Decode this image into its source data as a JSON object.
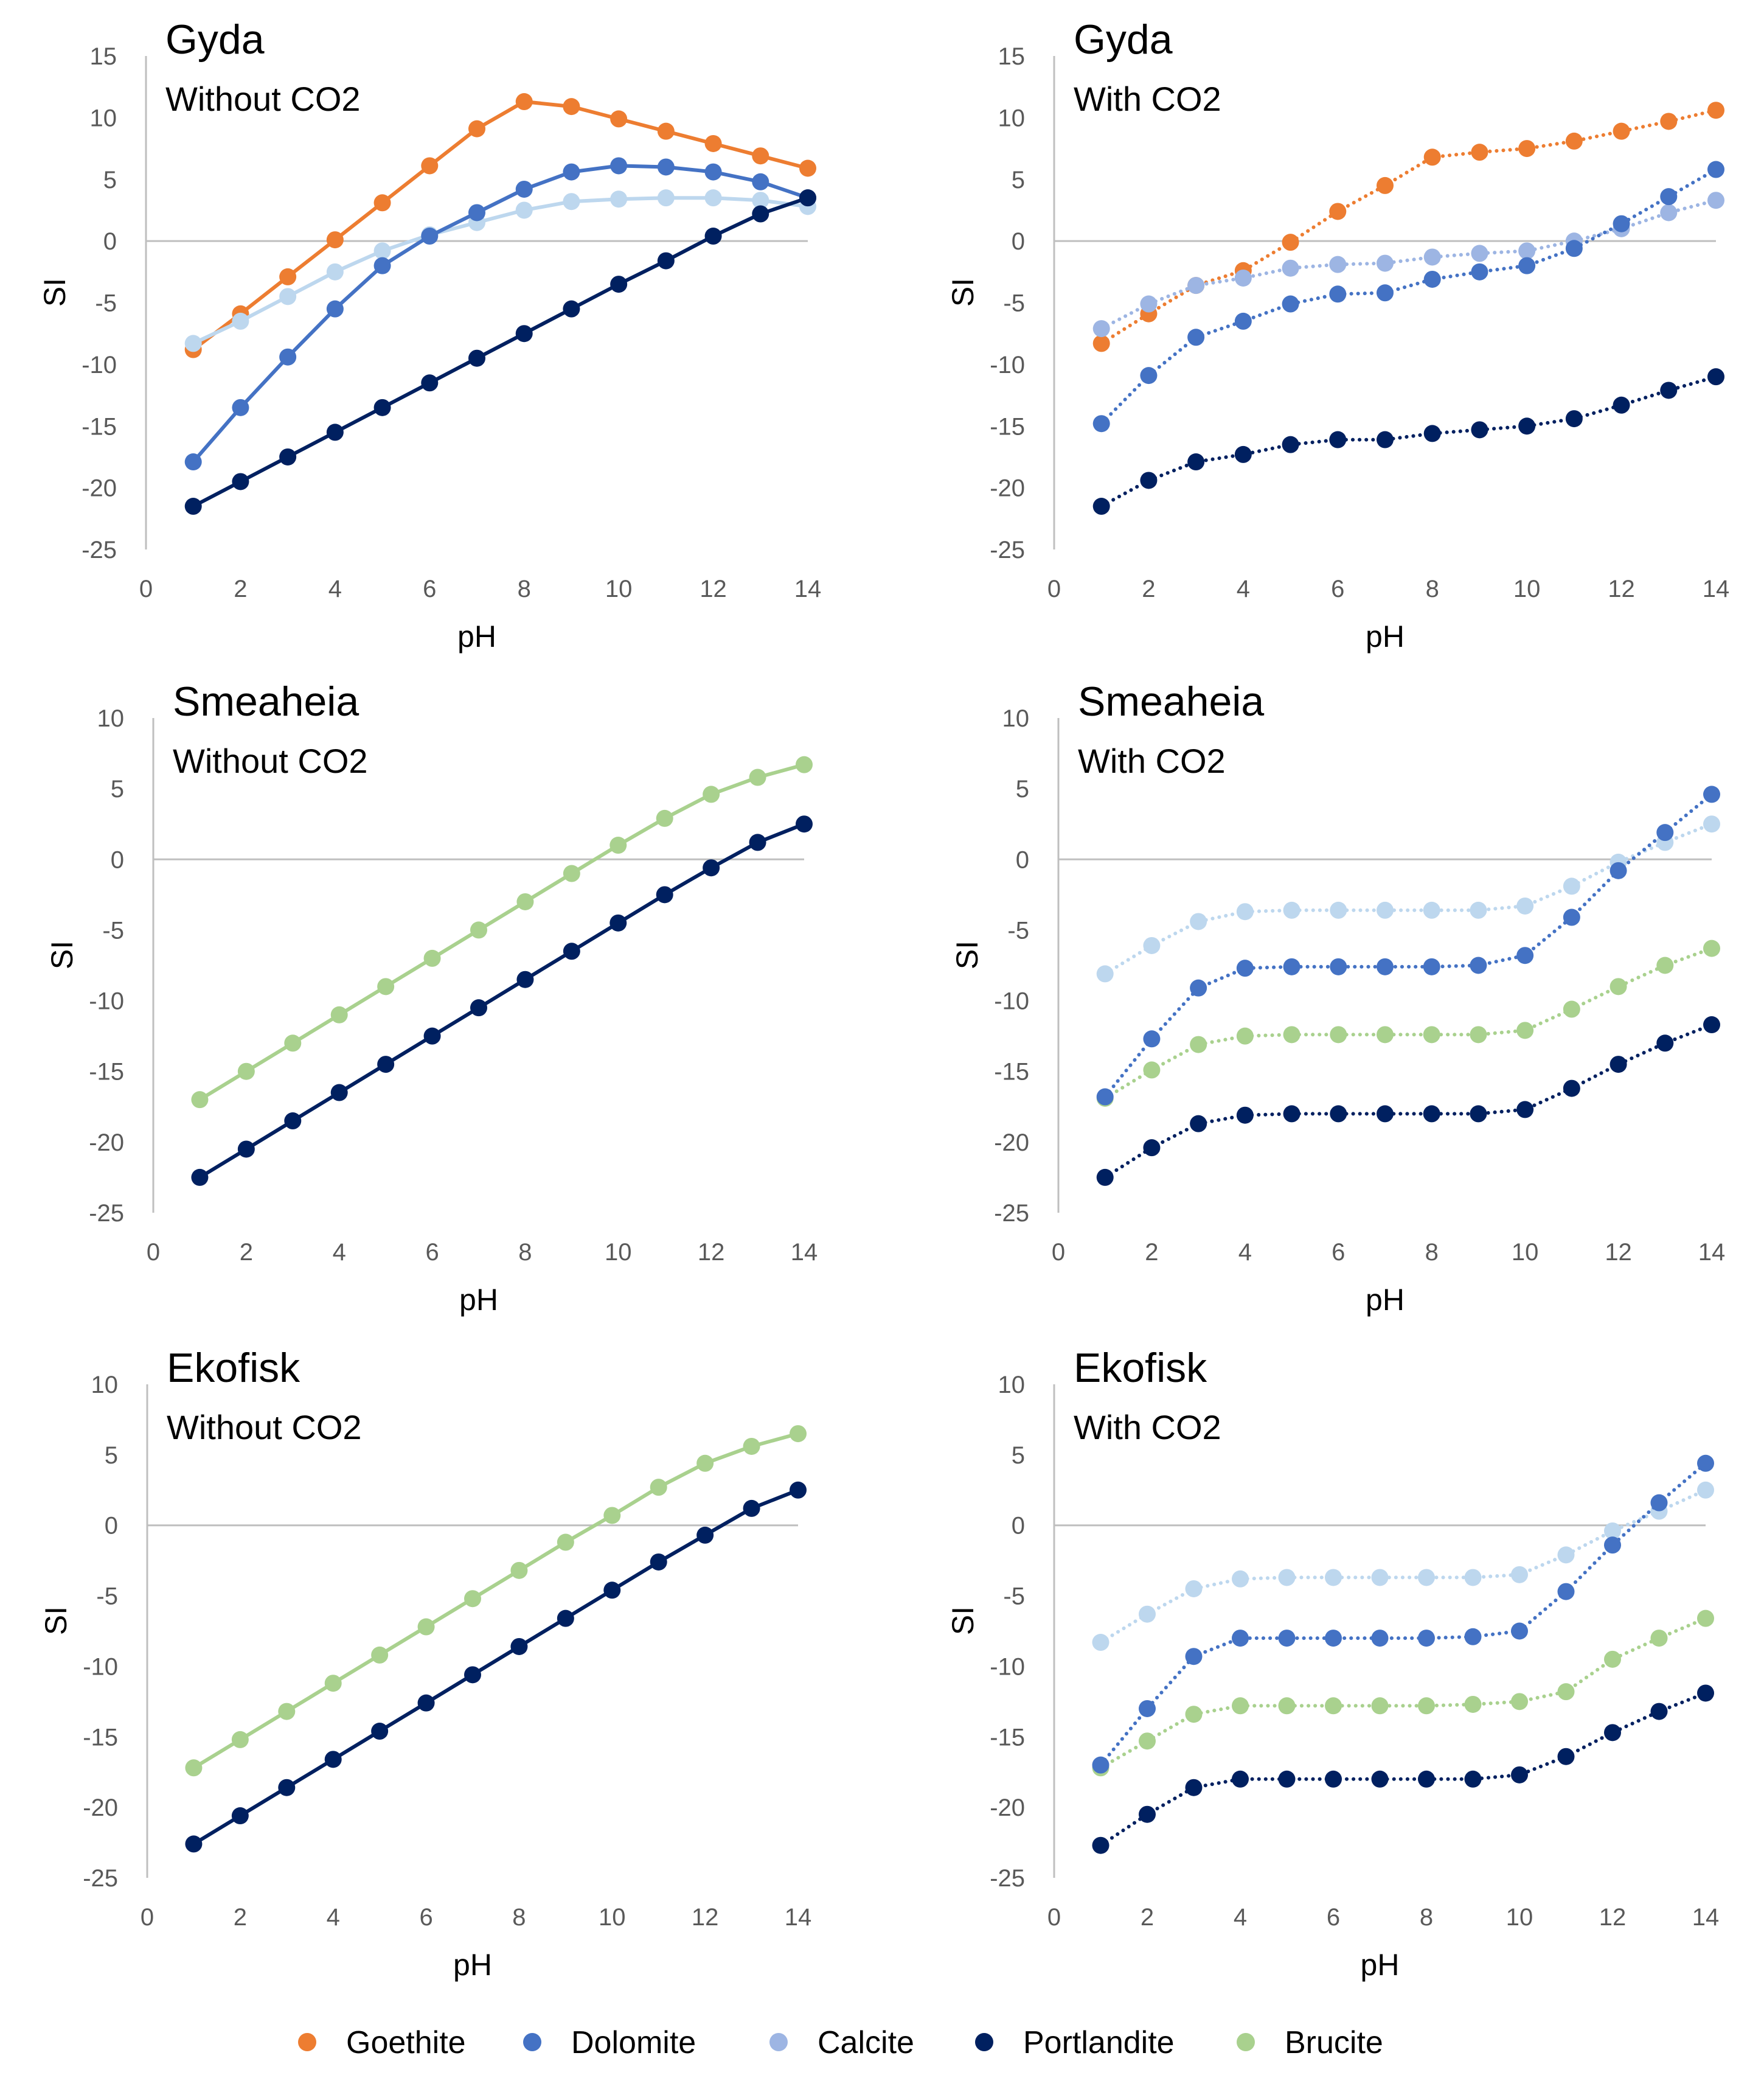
{
  "colors": {
    "Goethite": "#ED7D31",
    "Dolomite": "#4472C4",
    "Calcite": "#9DB5E3",
    "Calcite_light": "#BDD7EE",
    "Portlandite": "#002060",
    "Brucite": "#A9D18E"
  },
  "legend": [
    {
      "name": "Goethite",
      "color": "#ED7D31"
    },
    {
      "name": "Dolomite",
      "color": "#4472C4"
    },
    {
      "name": "Calcite",
      "color": "#9DB5E3"
    },
    {
      "name": "Portlandite",
      "color": "#002060"
    },
    {
      "name": "Brucite",
      "color": "#A9D18E"
    }
  ],
  "chart_data": [
    {
      "type": "line",
      "title": "Gyda",
      "subtitle": "Without CO2",
      "xlabel": "pH",
      "ylabel": "SI",
      "xlim": [
        0,
        14
      ],
      "ylim": [
        -25,
        15
      ],
      "xticks": [
        0,
        2,
        4,
        6,
        8,
        10,
        12,
        14
      ],
      "yticks": [
        15,
        10,
        5,
        0,
        -5,
        -10,
        -15,
        -20,
        -25
      ],
      "line_style": "solid",
      "x": [
        1,
        2,
        3,
        4,
        5,
        6,
        7,
        8,
        9,
        10,
        11,
        12,
        13,
        14
      ],
      "series": [
        {
          "name": "Goethite",
          "color": "#ED7D31",
          "values": [
            -8.8,
            -5.9,
            -2.9,
            0.1,
            3.1,
            6.1,
            9.1,
            11.3,
            10.9,
            9.9,
            8.9,
            7.9,
            6.9,
            5.9
          ]
        },
        {
          "name": "Calcite",
          "color": "#BDD7EE",
          "values": [
            -8.3,
            -6.5,
            -4.5,
            -2.5,
            -0.8,
            0.5,
            1.5,
            2.5,
            3.2,
            3.4,
            3.5,
            3.5,
            3.3,
            2.8
          ]
        },
        {
          "name": "Dolomite",
          "color": "#4472C4",
          "values": [
            -17.9,
            -13.5,
            -9.4,
            -5.5,
            -2.0,
            0.4,
            2.3,
            4.2,
            5.6,
            6.1,
            6.0,
            5.6,
            4.8,
            3.5
          ]
        },
        {
          "name": "Portlandite",
          "color": "#002060",
          "values": [
            -21.5,
            -19.5,
            -17.5,
            -15.5,
            -13.5,
            -11.5,
            -9.5,
            -7.5,
            -5.5,
            -3.5,
            -1.6,
            0.4,
            2.2,
            3.5
          ]
        }
      ]
    },
    {
      "type": "line",
      "title": "Gyda",
      "subtitle": "With CO2",
      "xlabel": "pH",
      "ylabel": "SI",
      "xlim": [
        0,
        14
      ],
      "ylim": [
        -25,
        15
      ],
      "xticks": [
        0,
        2,
        4,
        6,
        8,
        10,
        12,
        14
      ],
      "yticks": [
        15,
        10,
        5,
        0,
        -5,
        -10,
        -15,
        -20,
        -25
      ],
      "line_style": "dotted",
      "x": [
        1,
        2,
        3,
        4,
        5,
        6,
        7,
        8,
        9,
        10,
        11,
        12,
        13,
        14
      ],
      "series": [
        {
          "name": "Goethite",
          "color": "#ED7D31",
          "values": [
            -8.3,
            -5.9,
            -3.6,
            -2.4,
            -0.1,
            2.4,
            4.5,
            6.8,
            7.2,
            7.5,
            8.1,
            8.9,
            9.7,
            10.6
          ]
        },
        {
          "name": "Calcite",
          "color": "#9DB5E3",
          "values": [
            -7.1,
            -5.1,
            -3.6,
            -3.0,
            -2.2,
            -1.9,
            -1.8,
            -1.3,
            -1.0,
            -0.8,
            0.0,
            1.0,
            2.3,
            3.3
          ]
        },
        {
          "name": "Dolomite",
          "color": "#4472C4",
          "values": [
            -14.8,
            -10.9,
            -7.8,
            -6.5,
            -5.1,
            -4.3,
            -4.2,
            -3.1,
            -2.5,
            -2.0,
            -0.6,
            1.4,
            3.6,
            5.8
          ]
        },
        {
          "name": "Portlandite",
          "color": "#002060",
          "values": [
            -21.5,
            -19.4,
            -17.9,
            -17.3,
            -16.5,
            -16.1,
            -16.1,
            -15.6,
            -15.3,
            -15.0,
            -14.4,
            -13.3,
            -12.1,
            -11.0
          ]
        }
      ]
    },
    {
      "type": "line",
      "title": "Smeaheia",
      "subtitle": "Without CO2",
      "xlabel": "pH",
      "ylabel": "SI",
      "xlim": [
        0,
        14
      ],
      "ylim": [
        -25,
        10
      ],
      "xticks": [
        0,
        2,
        4,
        6,
        8,
        10,
        12,
        14
      ],
      "yticks": [
        10,
        5,
        0,
        -5,
        -10,
        -15,
        -20,
        -25
      ],
      "line_style": "solid",
      "x": [
        1,
        2,
        3,
        4,
        5,
        6,
        7,
        8,
        9,
        10,
        11,
        12,
        13,
        14
      ],
      "series": [
        {
          "name": "Brucite",
          "color": "#A9D18E",
          "values": [
            -17.0,
            -15.0,
            -13.0,
            -11.0,
            -9.0,
            -7.0,
            -5.0,
            -3.0,
            -1.0,
            1.0,
            2.9,
            4.6,
            5.8,
            6.7
          ]
        },
        {
          "name": "Portlandite",
          "color": "#002060",
          "values": [
            -22.5,
            -20.5,
            -18.5,
            -16.5,
            -14.5,
            -12.5,
            -10.5,
            -8.5,
            -6.5,
            -4.5,
            -2.5,
            -0.6,
            1.2,
            2.5
          ]
        }
      ]
    },
    {
      "type": "line",
      "title": "Smeaheia",
      "subtitle": "With CO2",
      "xlabel": "pH",
      "ylabel": "SI",
      "xlim": [
        0,
        14
      ],
      "ylim": [
        -25,
        10
      ],
      "xticks": [
        0,
        2,
        4,
        6,
        8,
        10,
        12,
        14
      ],
      "yticks": [
        10,
        5,
        0,
        -5,
        -10,
        -15,
        -20,
        -25
      ],
      "line_style": "dotted",
      "x": [
        1,
        2,
        3,
        4,
        5,
        6,
        7,
        8,
        9,
        10,
        11,
        12,
        13,
        14
      ],
      "series": [
        {
          "name": "Calcite",
          "color": "#BDD7EE",
          "values": [
            -8.1,
            -6.1,
            -4.4,
            -3.7,
            -3.6,
            -3.6,
            -3.6,
            -3.6,
            -3.6,
            -3.3,
            -1.9,
            -0.2,
            1.2,
            2.5
          ]
        },
        {
          "name": "Brucite",
          "color": "#A9D18E",
          "values": [
            -16.9,
            -14.9,
            -13.1,
            -12.5,
            -12.4,
            -12.4,
            -12.4,
            -12.4,
            -12.4,
            -12.1,
            -10.6,
            -9.0,
            -7.5,
            -6.3
          ]
        },
        {
          "name": "Dolomite",
          "color": "#4472C4",
          "values": [
            -16.8,
            -12.7,
            -9.1,
            -7.7,
            -7.6,
            -7.6,
            -7.6,
            -7.6,
            -7.5,
            -6.8,
            -4.1,
            -0.8,
            1.9,
            4.6
          ]
        },
        {
          "name": "Portlandite",
          "color": "#002060",
          "values": [
            -22.5,
            -20.4,
            -18.7,
            -18.1,
            -18.0,
            -18.0,
            -18.0,
            -18.0,
            -18.0,
            -17.7,
            -16.2,
            -14.5,
            -13.0,
            -11.7
          ]
        }
      ]
    },
    {
      "type": "line",
      "title": "Ekofisk",
      "subtitle": "Without CO2",
      "xlabel": "pH",
      "ylabel": "SI",
      "xlim": [
        0,
        14
      ],
      "ylim": [
        -25,
        10
      ],
      "xticks": [
        0,
        2,
        4,
        6,
        8,
        10,
        12,
        14
      ],
      "yticks": [
        10,
        5,
        0,
        -5,
        -10,
        -15,
        -20,
        -25
      ],
      "line_style": "solid",
      "x": [
        1,
        2,
        3,
        4,
        5,
        6,
        7,
        8,
        9,
        10,
        11,
        12,
        13,
        14
      ],
      "series": [
        {
          "name": "Brucite",
          "color": "#A9D18E",
          "values": [
            -17.2,
            -15.2,
            -13.2,
            -11.2,
            -9.2,
            -7.2,
            -5.2,
            -3.2,
            -1.2,
            0.7,
            2.7,
            4.4,
            5.6,
            6.5
          ]
        },
        {
          "name": "Portlandite",
          "color": "#002060",
          "values": [
            -22.6,
            -20.6,
            -18.6,
            -16.6,
            -14.6,
            -12.6,
            -10.6,
            -8.6,
            -6.6,
            -4.6,
            -2.6,
            -0.7,
            1.2,
            2.5
          ]
        }
      ]
    },
    {
      "type": "line",
      "title": "Ekofisk",
      "subtitle": "With CO2",
      "xlabel": "pH",
      "ylabel": "SI",
      "xlim": [
        0,
        14
      ],
      "ylim": [
        -25,
        10
      ],
      "xticks": [
        0,
        2,
        4,
        6,
        8,
        10,
        12,
        14
      ],
      "yticks": [
        10,
        5,
        0,
        -5,
        -10,
        -15,
        -20,
        -25
      ],
      "line_style": "dotted",
      "x": [
        1,
        2,
        3,
        4,
        5,
        6,
        7,
        8,
        9,
        10,
        11,
        12,
        13,
        14
      ],
      "series": [
        {
          "name": "Calcite",
          "color": "#BDD7EE",
          "values": [
            -8.3,
            -6.3,
            -4.5,
            -3.8,
            -3.7,
            -3.7,
            -3.7,
            -3.7,
            -3.7,
            -3.5,
            -2.1,
            -0.4,
            1.0,
            2.5
          ]
        },
        {
          "name": "Brucite",
          "color": "#A9D18E",
          "values": [
            -17.2,
            -15.3,
            -13.4,
            -12.8,
            -12.8,
            -12.8,
            -12.8,
            -12.8,
            -12.7,
            -12.5,
            -11.8,
            -9.5,
            -8.0,
            -6.6
          ]
        },
        {
          "name": "Dolomite",
          "color": "#4472C4",
          "values": [
            -17.0,
            -13.0,
            -9.3,
            -8.0,
            -8.0,
            -8.0,
            -8.0,
            -8.0,
            -7.9,
            -7.5,
            -4.7,
            -1.4,
            1.6,
            4.4
          ]
        },
        {
          "name": "Portlandite",
          "color": "#002060",
          "values": [
            -22.7,
            -20.5,
            -18.6,
            -18.0,
            -18.0,
            -18.0,
            -18.0,
            -18.0,
            -18.0,
            -17.7,
            -16.4,
            -14.7,
            -13.2,
            -11.9
          ]
        }
      ]
    }
  ]
}
